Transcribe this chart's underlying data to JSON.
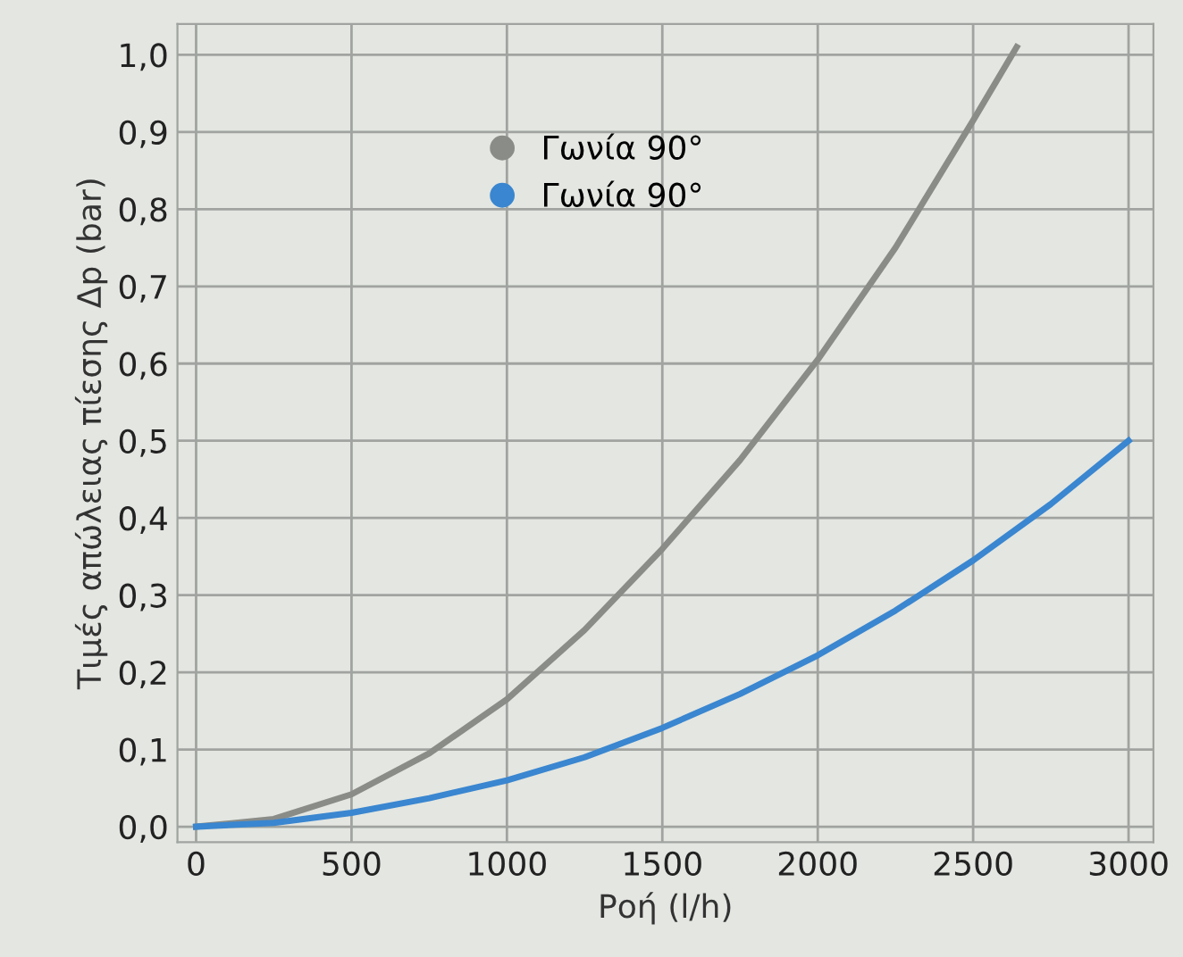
{
  "chart_data": {
    "type": "line",
    "xlabel": "Ροή (l/h)",
    "ylabel": "Τιμές απώλειας πίεσης Δp (bar)",
    "xlim": [
      -60,
      3080
    ],
    "xticks": [
      0,
      500,
      1000,
      1500,
      2000,
      2500,
      3000
    ],
    "ylim": [
      -0.02,
      1.04
    ],
    "yticks": [
      {
        "value": 0,
        "label": "0,0"
      },
      {
        "value": 0.1,
        "label": "0,1"
      },
      {
        "value": 0.2,
        "label": "0,2"
      },
      {
        "value": 0.3,
        "label": "0,3"
      },
      {
        "value": 0.4,
        "label": "0,4"
      },
      {
        "value": 0.5,
        "label": "0,5"
      },
      {
        "value": 0.6,
        "label": "0,6"
      },
      {
        "value": 0.7,
        "label": "0,7"
      },
      {
        "value": 0.8,
        "label": "0,8"
      },
      {
        "value": 0.9,
        "label": "0,9"
      },
      {
        "value": 1.0,
        "label": "1,0"
      }
    ],
    "grid": true,
    "legend": "top left",
    "marker": "none",
    "line_style": "solid",
    "series": [
      {
        "name": "Γωνία 90°",
        "color": "#8a8c88",
        "x": [
          0,
          250,
          500,
          750,
          1000,
          1250,
          1500,
          1750,
          2000,
          2250,
          2500,
          2640
        ],
        "values": [
          0,
          0.01,
          0.042,
          0.095,
          0.165,
          0.255,
          0.36,
          0.475,
          0.605,
          0.75,
          0.915,
          1.01
        ]
      },
      {
        "name": "Γωνία 90°",
        "color": "#3a86d0",
        "x": [
          0,
          250,
          500,
          750,
          1000,
          1250,
          1500,
          1750,
          2000,
          2250,
          2500,
          2750,
          3000
        ],
        "values": [
          0,
          0.005,
          0.018,
          0.037,
          0.06,
          0.09,
          0.128,
          0.172,
          0.222,
          0.28,
          0.345,
          0.418,
          0.5
        ]
      }
    ]
  }
}
